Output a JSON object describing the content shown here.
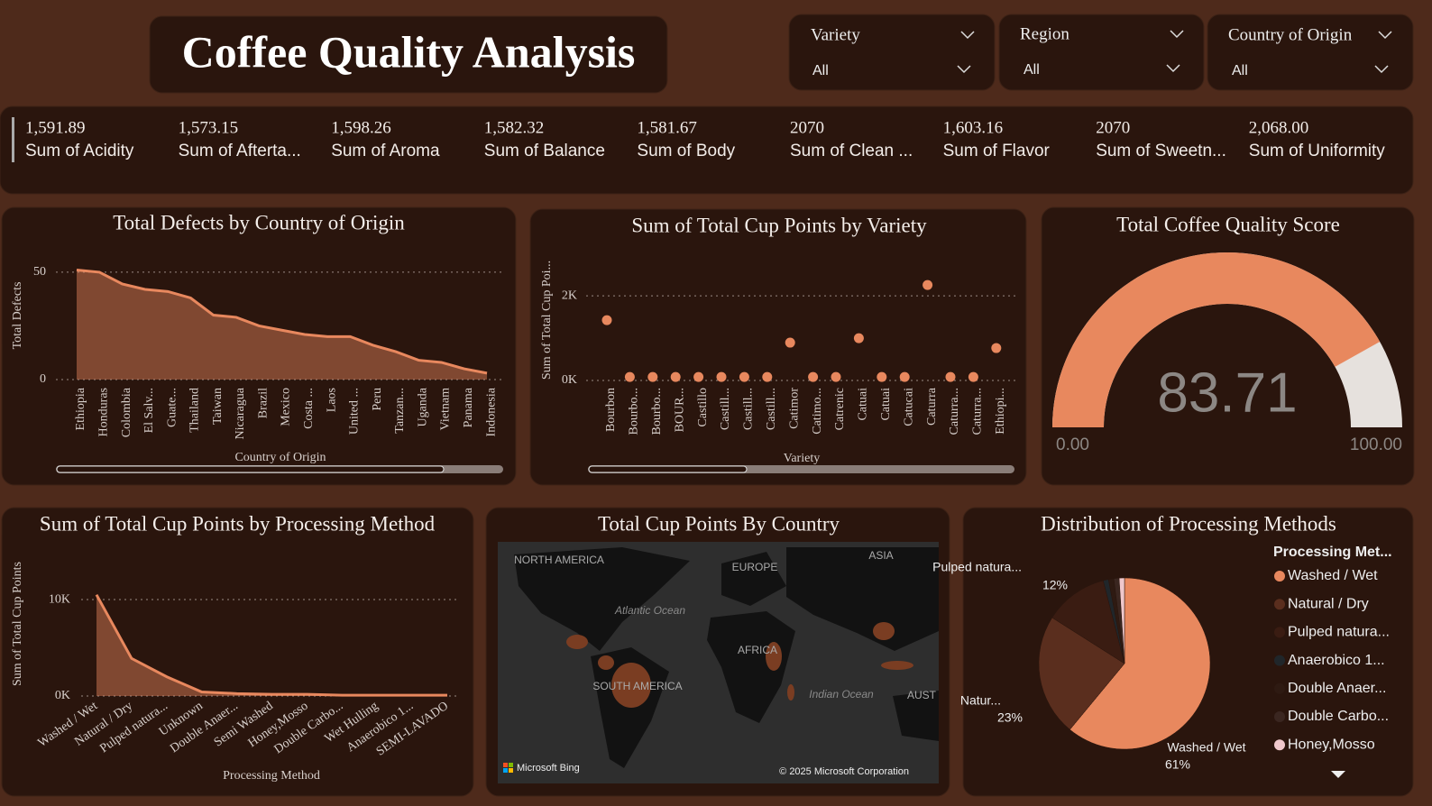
{
  "title": "Coffee Quality Analysis",
  "slicers": [
    {
      "label": "Variety",
      "value": "All"
    },
    {
      "label": "Region",
      "value": "All"
    },
    {
      "label": "Country of Origin",
      "value": "All"
    }
  ],
  "kpis": [
    {
      "value": "1,591.89",
      "label": "Sum of Acidity"
    },
    {
      "value": "1,573.15",
      "label": "Sum of Afterta..."
    },
    {
      "value": "1,598.26",
      "label": "Sum of Aroma"
    },
    {
      "value": "1,582.32",
      "label": "Sum of Balance"
    },
    {
      "value": "1,581.67",
      "label": "Sum of Body"
    },
    {
      "value": "2070",
      "label": "Sum of Clean ..."
    },
    {
      "value": "1,603.16",
      "label": "Sum of Flavor"
    },
    {
      "value": "2070",
      "label": "Sum of Sweetn..."
    },
    {
      "value": "2,068.00",
      "label": "Sum of Uniformity"
    }
  ],
  "chart_data": [
    {
      "type": "area",
      "title": "Total Defects by Country of Origin",
      "x_label": "Country of Origin",
      "y_label": "Total Defects",
      "categories": [
        "Ethiopia",
        "Honduras",
        "Colombia",
        "El Salv...",
        "Guate...",
        "Thailand",
        "Taiwan",
        "Nicaragua",
        "Brazil",
        "Mexico",
        "Costa ...",
        "Laos",
        "United ...",
        "Peru",
        "Tanzan...",
        "Uganda",
        "Vietnam",
        "Panama",
        "Indonesia"
      ],
      "values": [
        51,
        50,
        44.5,
        42,
        41,
        38,
        30,
        29,
        25,
        23,
        21,
        20,
        20,
        16,
        13,
        9,
        8,
        5,
        3
      ],
      "color": "#E8885E",
      "ylim": [
        0,
        55
      ],
      "yticks": [
        0,
        50
      ],
      "grid": true
    },
    {
      "type": "dot",
      "title": "Sum of Total Cup Points by Variety",
      "x_label": "Variety",
      "y_label": "Sum of Total Cup Poi...",
      "categories": [
        "Bourbon",
        "Bourbo...",
        "Bourbo...",
        "BOUR...",
        "Castillo",
        "Castill...",
        "Castill...",
        "Castill...",
        "Catimor",
        "Catimo...",
        "Catrenic",
        "Catuai",
        "Catuai",
        "Catucai",
        "Caturra",
        "Caturra...",
        "Caturra...",
        "Ethiopi..."
      ],
      "values": [
        1426,
        83,
        83,
        83,
        83,
        83,
        83,
        83,
        894,
        83,
        83,
        1000,
        83,
        83,
        2256,
        83,
        83,
        766
      ],
      "color": "#E8885E",
      "ylim": [
        0,
        2600
      ],
      "yticks": [
        {
          "value": 0,
          "label": "0K"
        },
        {
          "value": 2000,
          "label": "2K"
        }
      ],
      "grid": true
    },
    {
      "type": "gauge",
      "title": "Total Coffee Quality Score",
      "value": 83.71,
      "color": "#E8885E",
      "track_color": "#E6E1DD",
      "ylim": [
        0,
        100
      ],
      "yticks": [
        {
          "value": 0,
          "label": "0.00"
        },
        {
          "value": 100,
          "label": "100.00"
        }
      ]
    },
    {
      "type": "area",
      "title": "Sum of Total Cup Points by Processing Method",
      "x_label": "Processing Method",
      "y_label": "Sum of Total Cup Points",
      "categories": [
        "Washed / Wet",
        "Natural / Dry",
        "Pulped natura...",
        "Unknown",
        "Double Anaer...",
        "Semi Washed",
        "Honey,Mosso",
        "Double Carbo...",
        "Wet Hulling",
        "Anaerobico 1...",
        "SEMI-LAVADO"
      ],
      "values": [
        10500,
        3900,
        2000,
        420,
        250,
        170,
        170,
        85,
        85,
        85,
        85
      ],
      "color": "#E8885E",
      "ylim": [
        0,
        11500
      ],
      "yticks": [
        {
          "value": 0,
          "label": "0K"
        },
        {
          "value": 10000,
          "label": "10K"
        }
      ],
      "grid": true
    },
    {
      "type": "map",
      "title": "Total Cup Points By Country",
      "labels": [
        "NORTH AMERICA",
        "EUROPE",
        "ASIA",
        "Atlantic Ocean",
        "AFRICA",
        "SOUTH AMERICA",
        "Indian Ocean",
        "AUST"
      ],
      "attribution": [
        "Microsoft Bing",
        "© 2025 Microsoft Corporation"
      ]
    },
    {
      "type": "pie",
      "title": "Distribution of Processing Methods",
      "legend_title": "Processing Met...",
      "categories": [
        "Washed / Wet",
        "Natural / Dry",
        "Pulped natura...",
        "Anaerobico 1...",
        "Double Anaer...",
        "Double Carbo...",
        "Honey,Mosso"
      ],
      "values": [
        61,
        23,
        12,
        1,
        1,
        1,
        1
      ],
      "value_labels": [
        "61%",
        "23%",
        "12%",
        null,
        null,
        null,
        null
      ],
      "slice_labels": [
        "Washed / Wet",
        "Natur...",
        "Pulped natura...",
        null,
        null,
        null,
        null
      ],
      "colors": [
        "#E8885E",
        "#5A2E1E",
        "#3A1C12",
        "#20262A",
        "#2E1A12",
        "#3A2620",
        "#F0C8CC"
      ]
    }
  ]
}
